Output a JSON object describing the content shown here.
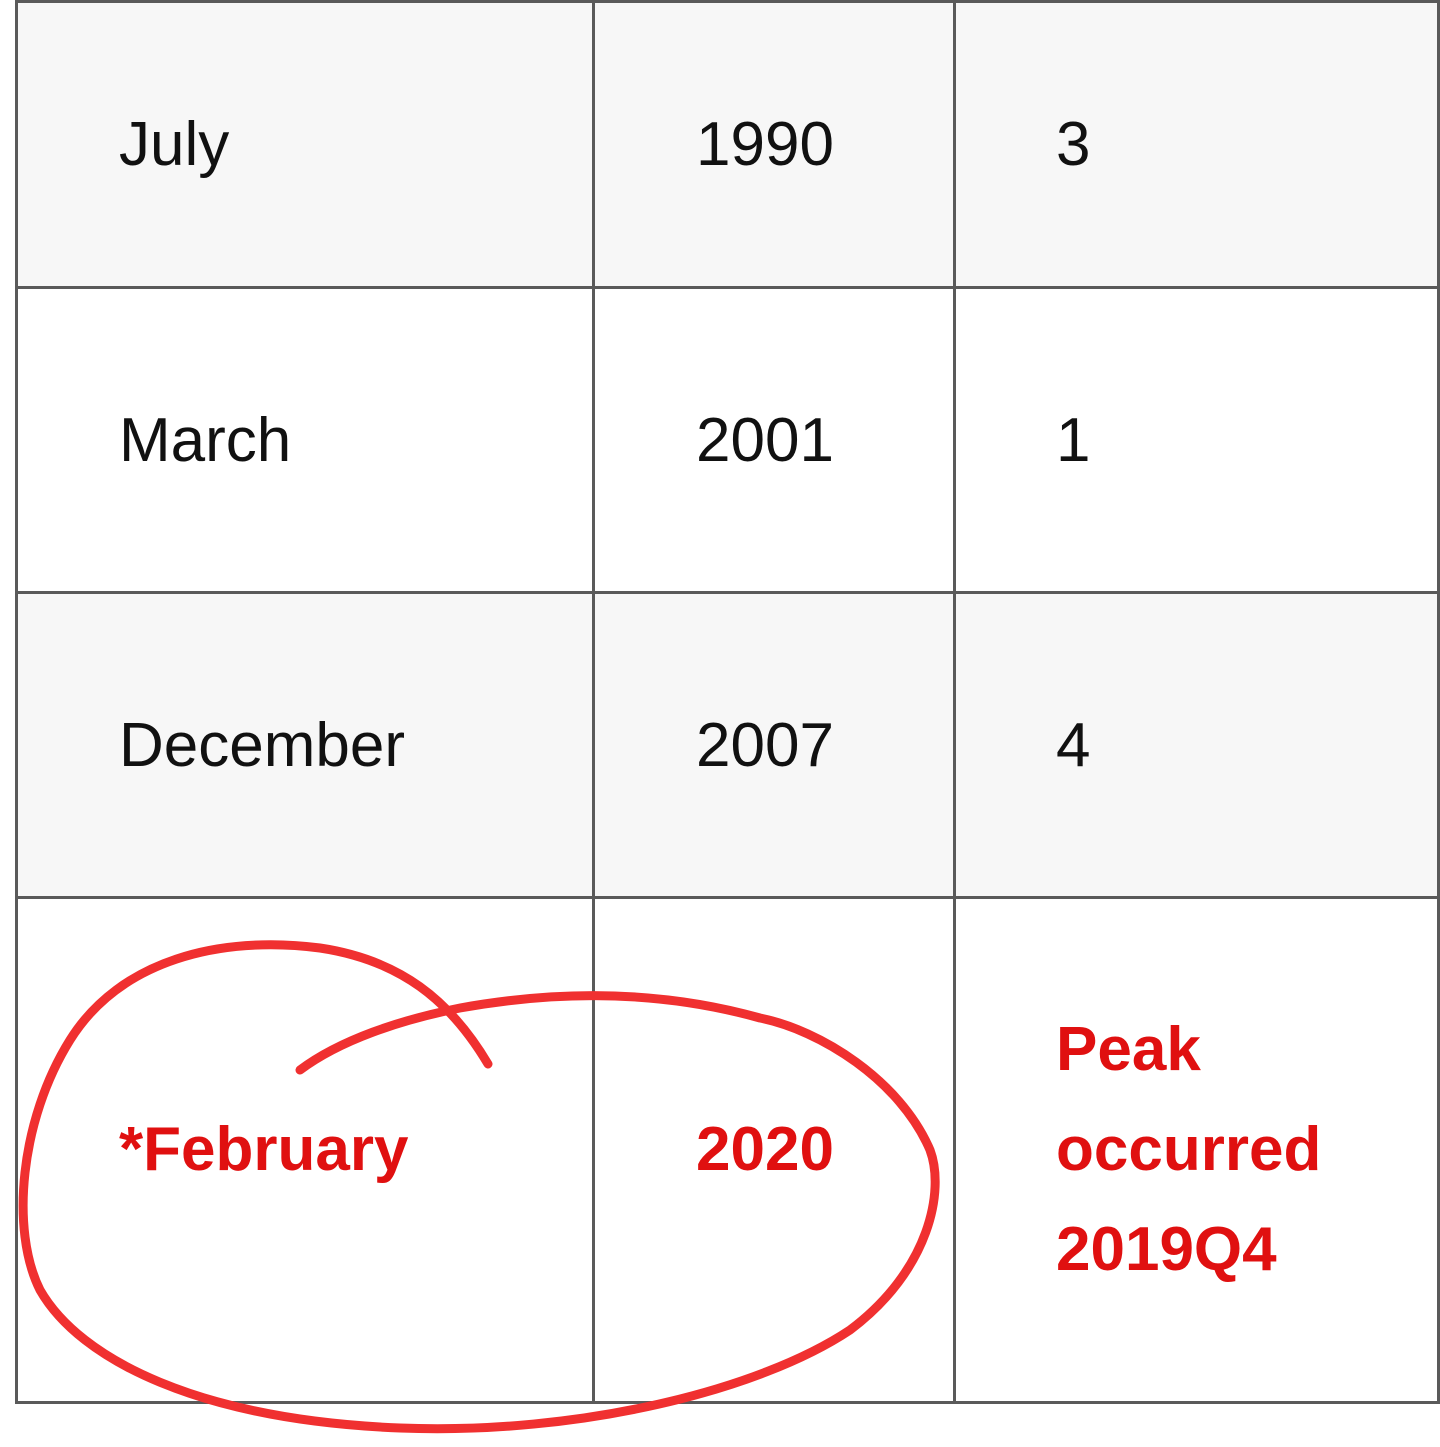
{
  "rows": [
    {
      "month": "July",
      "year": "1990",
      "value": "3",
      "shaded": true
    },
    {
      "month": "March",
      "year": "2001",
      "value": "1",
      "shaded": false
    },
    {
      "month": "December",
      "year": "2007",
      "value": "4",
      "shaded": true
    },
    {
      "month": "*February",
      "year": "2020",
      "note_lines": [
        "Peak",
        "occurred",
        "2019Q4"
      ],
      "highlight_color": "#e01010"
    }
  ],
  "annotation": {
    "type": "hand-drawn circle",
    "color": "#f03030"
  }
}
